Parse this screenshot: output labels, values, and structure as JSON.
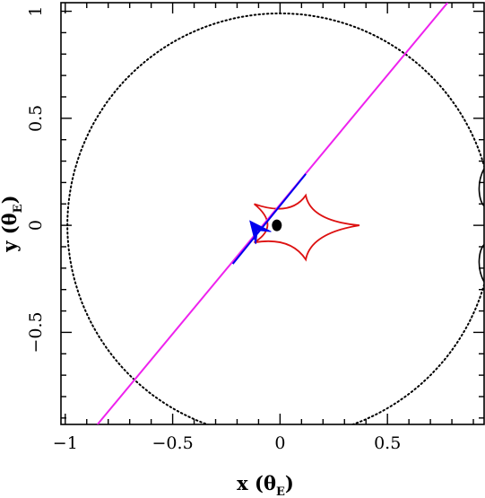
{
  "chart_data": {
    "type": "line",
    "title": "",
    "xlabel": {
      "main": "x (",
      "symbol": "θ",
      "sub": "E",
      "close": ")"
    },
    "ylabel": {
      "main": "y (",
      "symbol": "θ",
      "sub": "E",
      "close": ")"
    },
    "xlim": [
      -1.02,
      0.95
    ],
    "ylim": [
      -0.93,
      1.04
    ],
    "x_ticks": [
      {
        "value": -1,
        "label": "−1"
      },
      {
        "value": -0.5,
        "label": "−0.5"
      },
      {
        "value": 0,
        "label": "0"
      },
      {
        "value": 0.5,
        "label": "0.5"
      }
    ],
    "y_ticks": [
      {
        "value": -0.5,
        "label": "−0.5"
      },
      {
        "value": 0,
        "label": "0"
      },
      {
        "value": 0.5,
        "label": "0.5"
      },
      {
        "value": 1,
        "label": "1"
      }
    ],
    "grid": false,
    "legend": "none",
    "series": [
      {
        "kind": "dotted-curve",
        "color": "#000000",
        "circle_center": [
          0,
          0
        ],
        "circle_radius": 0.99,
        "cusp_left": {
          "x": 0.845,
          "y": 0.3
        },
        "cusp_right": {
          "x": 0.95,
          "y": 0.09
        },
        "solid_from_y": 0.27
      },
      {
        "kind": "caustic",
        "color": "#dd1111",
        "cusps": [
          [
            0.37,
            0.0
          ],
          [
            0.12,
            0.14
          ],
          [
            -0.12,
            0.1
          ],
          [
            -0.12,
            -0.08
          ],
          [
            0.12,
            -0.16
          ]
        ]
      },
      {
        "kind": "trajectory",
        "color": "#ee22ee",
        "points": [
          [
            -0.85,
            -0.93
          ],
          [
            0.78,
            1.04
          ]
        ]
      },
      {
        "kind": "trajectory-highlight",
        "color": "#0000ee",
        "points": [
          [
            -0.22,
            -0.18
          ],
          [
            0.12,
            0.24
          ]
        ]
      },
      {
        "kind": "arrow",
        "color": "#0000ee",
        "tip": [
          -0.14,
          0.02
        ],
        "tail": [
          -0.06,
          -0.08
        ]
      },
      {
        "kind": "point",
        "color": "#000000",
        "x": -0.015,
        "y": 0.0
      }
    ]
  }
}
